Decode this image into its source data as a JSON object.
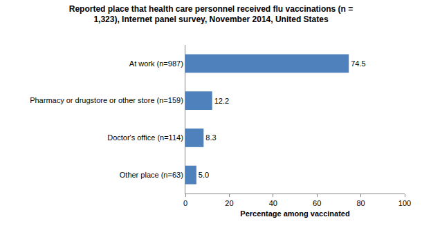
{
  "chart_data": {
    "type": "bar",
    "orientation": "horizontal",
    "title": "Reported place that health care personnel received flu vaccinations (n = 1,323), Internet panel survey, November 2014, United States",
    "x_label": "Percentage among vaccinated",
    "categories": [
      "At work (n=987)",
      "Pharmacy or drugstore or other store (n=159)",
      "Doctor's office (n=114)",
      "Other place (n=63)"
    ],
    "values": [
      74.5,
      12.2,
      8.3,
      5.0
    ],
    "value_labels": [
      "74.5",
      "12.2",
      "8.3",
      "5.0"
    ],
    "data_labels": true,
    "color": "#4f81bd",
    "xlim": [
      0,
      100
    ],
    "xticks": [
      0,
      20,
      40,
      60,
      80,
      100
    ],
    "grid": false
  }
}
